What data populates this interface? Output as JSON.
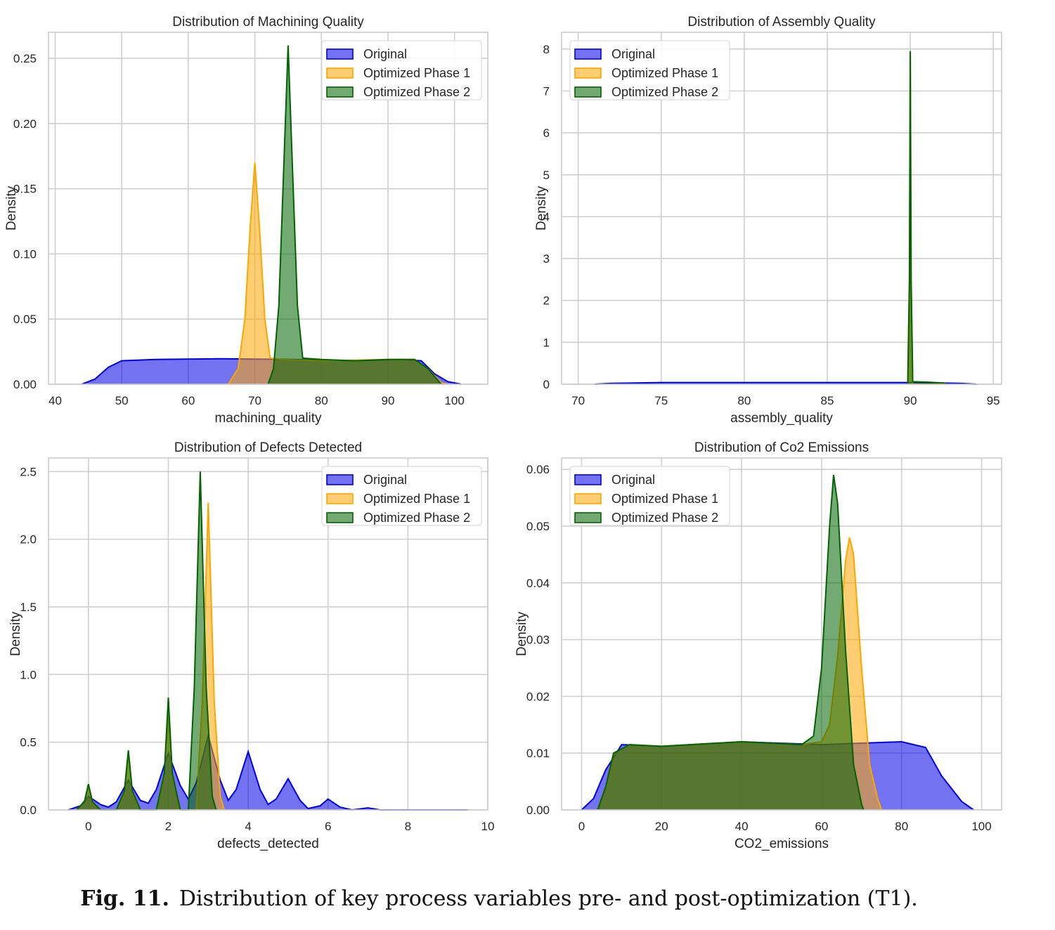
{
  "figure": {
    "caption_label": "Fig. 11.",
    "caption_text": "Distribution of key process variables pre- and post-optimization (T1)."
  },
  "colors": {
    "original": "#0000e6",
    "phase1": "#ffa500",
    "phase2": "#006400",
    "grid": "#cfcfcf",
    "frame": "#cccccc"
  },
  "chart_data": [
    {
      "type": "area",
      "title": "Distribution of Machining Quality",
      "xlabel": "machining_quality",
      "ylabel": "Density",
      "xlim": [
        39,
        105
      ],
      "ylim": [
        0,
        0.27
      ],
      "xticks": [
        40,
        50,
        60,
        70,
        80,
        90,
        100
      ],
      "yticks": [
        0.0,
        0.05,
        0.1,
        0.15,
        0.2,
        0.25
      ],
      "ytick_labels": [
        "0.00",
        "0.05",
        "0.10",
        "0.15",
        "0.20",
        "0.25"
      ],
      "legend": "top-right",
      "series": [
        {
          "name": "Original",
          "key": "original",
          "points": [
            [
              44,
              0
            ],
            [
              46,
              0.004
            ],
            [
              48,
              0.013
            ],
            [
              50,
              0.018
            ],
            [
              55,
              0.019
            ],
            [
              65,
              0.0195
            ],
            [
              75,
              0.019
            ],
            [
              85,
              0.018
            ],
            [
              92,
              0.019
            ],
            [
              95,
              0.018
            ],
            [
              97,
              0.008
            ],
            [
              99,
              0.002
            ],
            [
              101,
              0
            ]
          ]
        },
        {
          "name": "Optimized Phase 1",
          "key": "phase1",
          "points": [
            [
              66,
              0
            ],
            [
              67.5,
              0.012
            ],
            [
              68.5,
              0.05
            ],
            [
              69.3,
              0.12
            ],
            [
              70,
              0.17
            ],
            [
              70.7,
              0.12
            ],
            [
              71.5,
              0.05
            ],
            [
              72.3,
              0.02
            ],
            [
              74,
              0.019
            ],
            [
              80,
              0.018
            ],
            [
              90,
              0.019
            ],
            [
              94,
              0.019
            ],
            [
              96,
              0.012
            ],
            [
              98,
              0.001
            ],
            [
              99,
              0
            ]
          ]
        },
        {
          "name": "Optimized Phase 2",
          "key": "phase2",
          "points": [
            [
              72,
              0
            ],
            [
              72.8,
              0.012
            ],
            [
              73.6,
              0.06
            ],
            [
              74.3,
              0.16
            ],
            [
              75,
              0.26
            ],
            [
              75.7,
              0.16
            ],
            [
              76.4,
              0.06
            ],
            [
              77.2,
              0.02
            ],
            [
              80,
              0.019
            ],
            [
              85,
              0.018
            ],
            [
              90,
              0.019
            ],
            [
              94,
              0.019
            ],
            [
              96,
              0.012
            ],
            [
              98,
              0
            ]
          ]
        }
      ]
    },
    {
      "type": "area",
      "title": "Distribution of Assembly Quality",
      "xlabel": "assembly_quality",
      "ylabel": "Density",
      "xlim": [
        69,
        95.5
      ],
      "ylim": [
        0,
        8.4
      ],
      "xticks": [
        70,
        75,
        80,
        85,
        90,
        95
      ],
      "yticks": [
        0,
        1,
        2,
        3,
        4,
        5,
        6,
        7,
        8
      ],
      "ytick_labels": [
        "0",
        "1",
        "2",
        "3",
        "4",
        "5",
        "6",
        "7",
        "8"
      ],
      "legend": "top-left",
      "series": [
        {
          "name": "Original",
          "key": "original",
          "points": [
            [
              71,
              0
            ],
            [
              72,
              0.02
            ],
            [
              75,
              0.04
            ],
            [
              85,
              0.04
            ],
            [
              90,
              0.04
            ],
            [
              93,
              0.02
            ],
            [
              94,
              0
            ]
          ]
        },
        {
          "name": "Optimized Phase 1",
          "key": "phase1",
          "points": [
            [
              89.85,
              0
            ],
            [
              89.95,
              2.5
            ],
            [
              90,
              7.9
            ],
            [
              90.05,
              2.5
            ],
            [
              90.15,
              0
            ],
            [
              92,
              0
            ]
          ]
        },
        {
          "name": "Optimized Phase 2",
          "key": "phase2",
          "points": [
            [
              89.85,
              0
            ],
            [
              89.95,
              2.5
            ],
            [
              90,
              7.95
            ],
            [
              90.05,
              2.5
            ],
            [
              90.15,
              0.06
            ],
            [
              91,
              0.05
            ],
            [
              92,
              0.03
            ],
            [
              92.2,
              0
            ]
          ]
        }
      ]
    },
    {
      "type": "area",
      "title": "Distribution of Defects Detected",
      "xlabel": "defects_detected",
      "ylabel": "Density",
      "xlim": [
        -1,
        10
      ],
      "ylim": [
        0,
        2.6
      ],
      "xticks": [
        0,
        2,
        4,
        6,
        8,
        10
      ],
      "yticks": [
        0.0,
        0.5,
        1.0,
        1.5,
        2.0,
        2.5
      ],
      "ytick_labels": [
        "0.0",
        "0.5",
        "1.0",
        "1.5",
        "2.0",
        "2.5"
      ],
      "legend": "top-right",
      "series": [
        {
          "name": "Original",
          "key": "original",
          "points": [
            [
              -0.5,
              0
            ],
            [
              -0.2,
              0.03
            ],
            [
              0,
              0.1
            ],
            [
              0.3,
              0.04
            ],
            [
              0.5,
              0.02
            ],
            [
              0.7,
              0.06
            ],
            [
              1,
              0.22
            ],
            [
              1.3,
              0.07
            ],
            [
              1.5,
              0.05
            ],
            [
              1.7,
              0.15
            ],
            [
              2,
              0.42
            ],
            [
              2.3,
              0.18
            ],
            [
              2.5,
              0.08
            ],
            [
              2.7,
              0.2
            ],
            [
              3,
              0.55
            ],
            [
              3.3,
              0.22
            ],
            [
              3.5,
              0.07
            ],
            [
              3.7,
              0.15
            ],
            [
              4,
              0.43
            ],
            [
              4.3,
              0.15
            ],
            [
              4.5,
              0.04
            ],
            [
              4.7,
              0.08
            ],
            [
              5,
              0.23
            ],
            [
              5.3,
              0.07
            ],
            [
              5.5,
              0.01
            ],
            [
              5.8,
              0.03
            ],
            [
              6,
              0.08
            ],
            [
              6.3,
              0.02
            ],
            [
              6.6,
              0
            ],
            [
              7,
              0.015
            ],
            [
              7.3,
              0
            ],
            [
              9.5,
              0
            ]
          ]
        },
        {
          "name": "Optimized Phase 1",
          "key": "phase1",
          "points": [
            [
              -0.3,
              0
            ],
            [
              -0.1,
              0.06
            ],
            [
              0,
              0.19
            ],
            [
              0.1,
              0.06
            ],
            [
              0.3,
              0
            ],
            [
              0.7,
              0
            ],
            [
              0.9,
              0.12
            ],
            [
              1,
              0.43
            ],
            [
              1.1,
              0.12
            ],
            [
              1.3,
              0
            ],
            [
              1.7,
              0
            ],
            [
              1.9,
              0.25
            ],
            [
              2,
              0.76
            ],
            [
              2.1,
              0.25
            ],
            [
              2.3,
              0
            ],
            [
              2.7,
              0
            ],
            [
              2.85,
              0.8
            ],
            [
              3,
              2.27
            ],
            [
              3.15,
              0.8
            ],
            [
              3.3,
              0.1
            ],
            [
              3.4,
              0
            ]
          ]
        },
        {
          "name": "Optimized Phase 2",
          "key": "phase2",
          "points": [
            [
              -0.3,
              0
            ],
            [
              -0.1,
              0.06
            ],
            [
              0,
              0.19
            ],
            [
              0.1,
              0.06
            ],
            [
              0.3,
              0
            ],
            [
              0.7,
              0
            ],
            [
              0.9,
              0.14
            ],
            [
              1,
              0.44
            ],
            [
              1.1,
              0.14
            ],
            [
              1.3,
              0
            ],
            [
              1.7,
              0
            ],
            [
              1.9,
              0.27
            ],
            [
              2,
              0.83
            ],
            [
              2.1,
              0.27
            ],
            [
              2.3,
              0
            ],
            [
              2.5,
              0
            ],
            [
              2.65,
              0.9
            ],
            [
              2.8,
              2.5
            ],
            [
              2.95,
              0.9
            ],
            [
              3.1,
              0.1
            ],
            [
              3.2,
              0
            ]
          ]
        }
      ]
    },
    {
      "type": "area",
      "title": "Distribution of Co2 Emissions",
      "xlabel": "CO2_emissions",
      "ylabel": "Density",
      "xlim": [
        -5,
        105
      ],
      "ylim": [
        0,
        0.062
      ],
      "xticks": [
        0,
        20,
        40,
        60,
        80,
        100
      ],
      "yticks": [
        0.0,
        0.01,
        0.02,
        0.03,
        0.04,
        0.05,
        0.06
      ],
      "ytick_labels": [
        "0.00",
        "0.01",
        "0.02",
        "0.03",
        "0.04",
        "0.05",
        "0.06"
      ],
      "legend": "top-left",
      "series": [
        {
          "name": "Original",
          "key": "original",
          "points": [
            [
              0,
              0
            ],
            [
              3,
              0.002
            ],
            [
              6,
              0.007
            ],
            [
              10,
              0.0115
            ],
            [
              20,
              0.0112
            ],
            [
              40,
              0.012
            ],
            [
              60,
              0.0115
            ],
            [
              80,
              0.012
            ],
            [
              86,
              0.011
            ],
            [
              90,
              0.006
            ],
            [
              95,
              0.0015
            ],
            [
              98,
              0
            ]
          ]
        },
        {
          "name": "Optimized Phase 1",
          "key": "phase1",
          "points": [
            [
              4,
              0
            ],
            [
              6,
              0.004
            ],
            [
              8,
              0.01
            ],
            [
              12,
              0.0115
            ],
            [
              20,
              0.0112
            ],
            [
              40,
              0.012
            ],
            [
              55,
              0.0115
            ],
            [
              60,
              0.012
            ],
            [
              62,
              0.015
            ],
            [
              64,
              0.027
            ],
            [
              66,
              0.044
            ],
            [
              67,
              0.048
            ],
            [
              68,
              0.045
            ],
            [
              70,
              0.025
            ],
            [
              72,
              0.008
            ],
            [
              74,
              0.002
            ],
            [
              75,
              0
            ]
          ]
        },
        {
          "name": "Optimized Phase 2",
          "key": "phase2",
          "points": [
            [
              4,
              0
            ],
            [
              6,
              0.004
            ],
            [
              8,
              0.01
            ],
            [
              12,
              0.0115
            ],
            [
              20,
              0.0112
            ],
            [
              40,
              0.012
            ],
            [
              55,
              0.0115
            ],
            [
              58,
              0.013
            ],
            [
              60,
              0.025
            ],
            [
              62,
              0.05
            ],
            [
              63,
              0.059
            ],
            [
              64,
              0.054
            ],
            [
              66,
              0.028
            ],
            [
              68,
              0.008
            ],
            [
              70,
              0.001
            ],
            [
              70.5,
              0
            ]
          ]
        }
      ]
    }
  ]
}
